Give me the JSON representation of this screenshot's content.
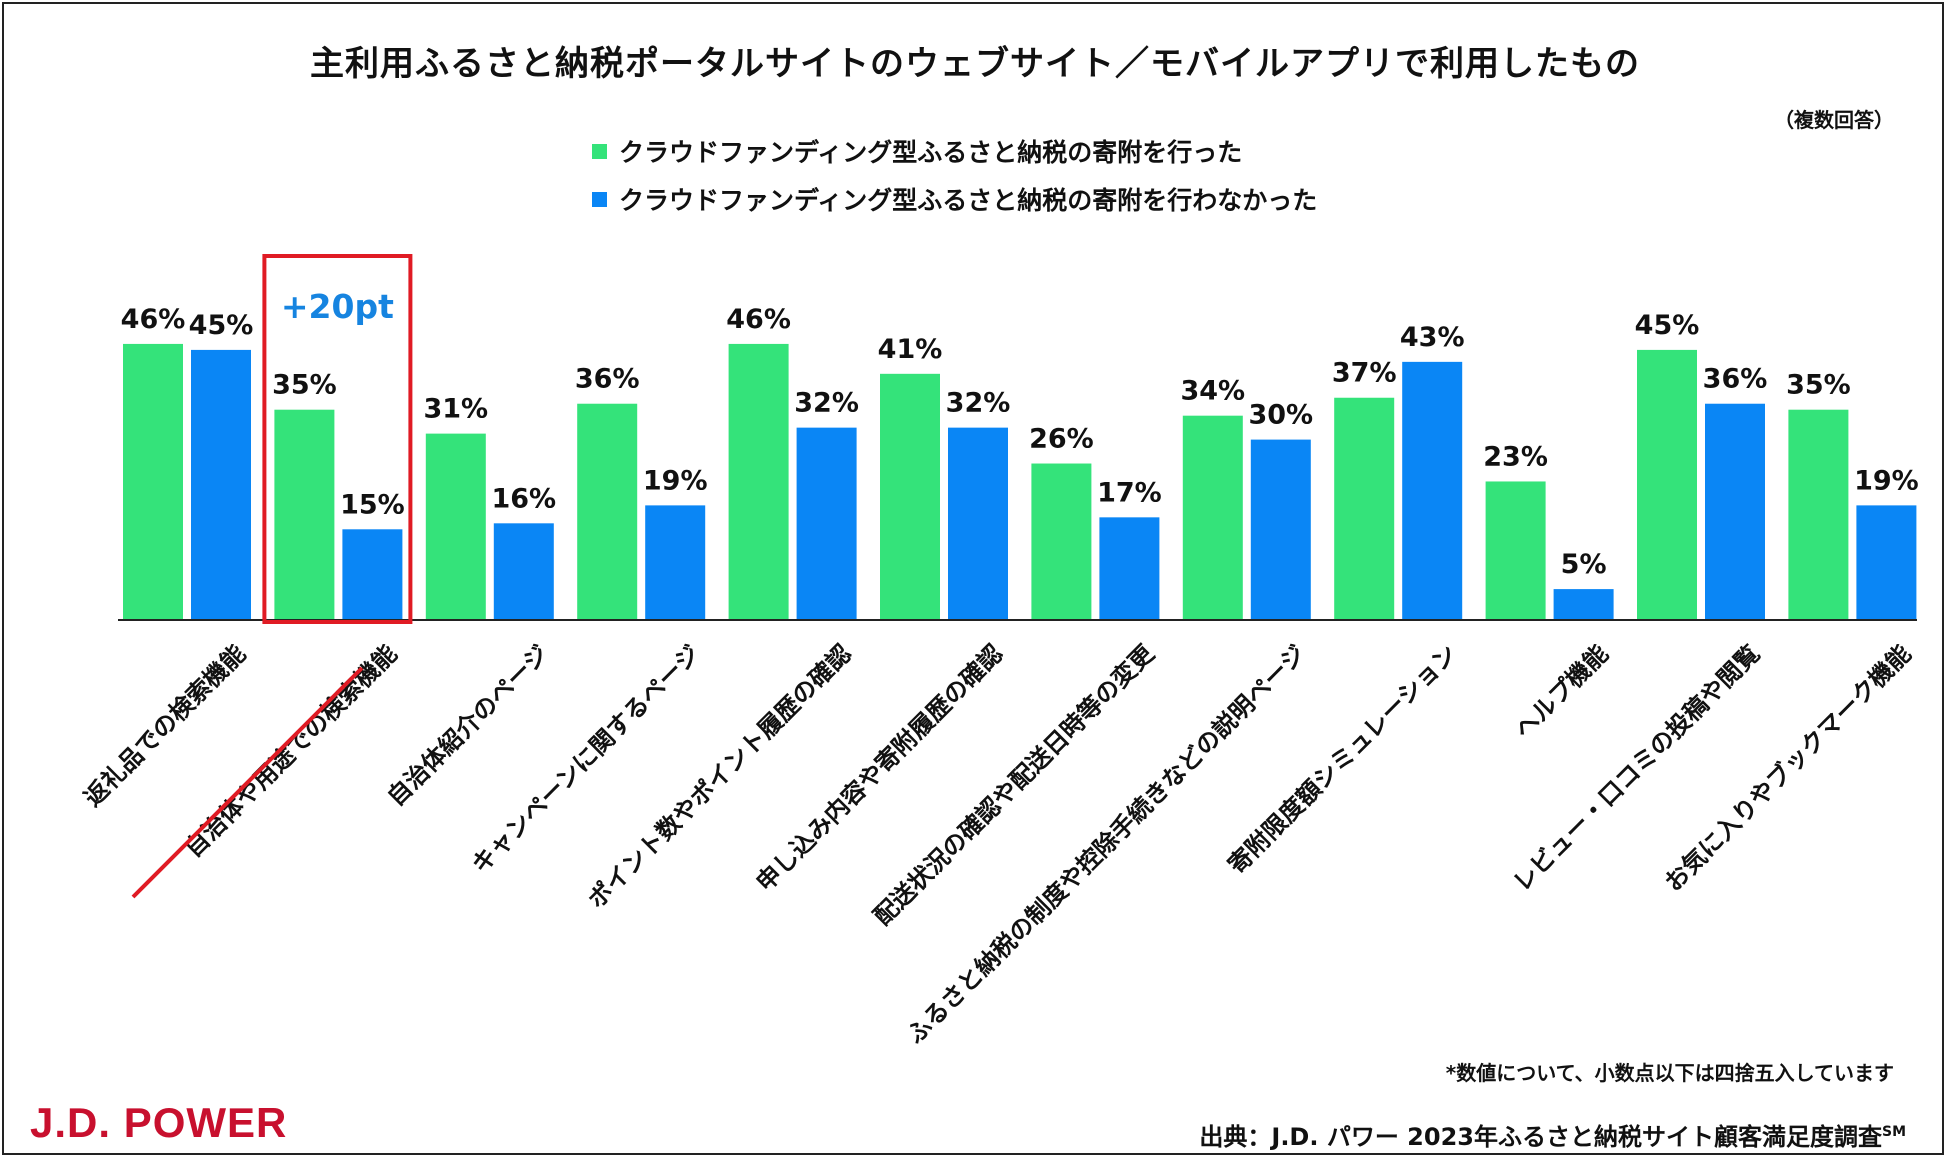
{
  "colors": {
    "series_green": "#34e37a",
    "series_blue": "#0a86f5",
    "highlight_red": "#e01b24",
    "annotation_blue": "#1684e0",
    "brand_red": "#c8102e"
  },
  "brand": {
    "logo_text": "J.D. POWER"
  },
  "notes": {
    "multiple_answers": "（複数回答）",
    "rounding": "*数値について、小数点以下は四捨五入しています",
    "source": "出典：J.D. パワー 2023年ふるさと納税サイト顧客満足度調査",
    "source_sup": "SM"
  },
  "chart_data": {
    "type": "bar",
    "title": "主利用ふるさと納税ポータルサイトのウェブサイト／モバイルアプリで利用したもの",
    "xlabel": "",
    "ylabel": "",
    "ylim": [
      0,
      50
    ],
    "unit": "%",
    "grid": false,
    "legend_position": "top",
    "categories": [
      "返礼品での検索機能",
      "自治体や用途での検索機能",
      "自治体紹介のページ",
      "キャンペーンに関するページ",
      "ポイント数やポイント履歴の確認",
      "申し込み内容や寄附履歴の確認",
      "配送状況の確認や配送日時等の変更",
      "ふるさと納税の制度や控除手続きなどの説明ページ",
      "寄附限度額シミュレーション",
      "ヘルプ機能",
      "レビュー・口コミの投稿や閲覧",
      "お気に入りやブックマーク機能"
    ],
    "series": [
      {
        "name": "クラウドファンディング型ふるさと納税の寄附を行った",
        "values": [
          46,
          35,
          31,
          36,
          46,
          41,
          26,
          34,
          37,
          23,
          45,
          35
        ]
      },
      {
        "name": "クラウドファンディング型ふるさと納税の寄附を行わなかった",
        "values": [
          45,
          15,
          16,
          19,
          32,
          32,
          17,
          30,
          43,
          5,
          36,
          19
        ]
      }
    ],
    "annotation": {
      "text": "+20pt",
      "category_index": 1
    }
  }
}
